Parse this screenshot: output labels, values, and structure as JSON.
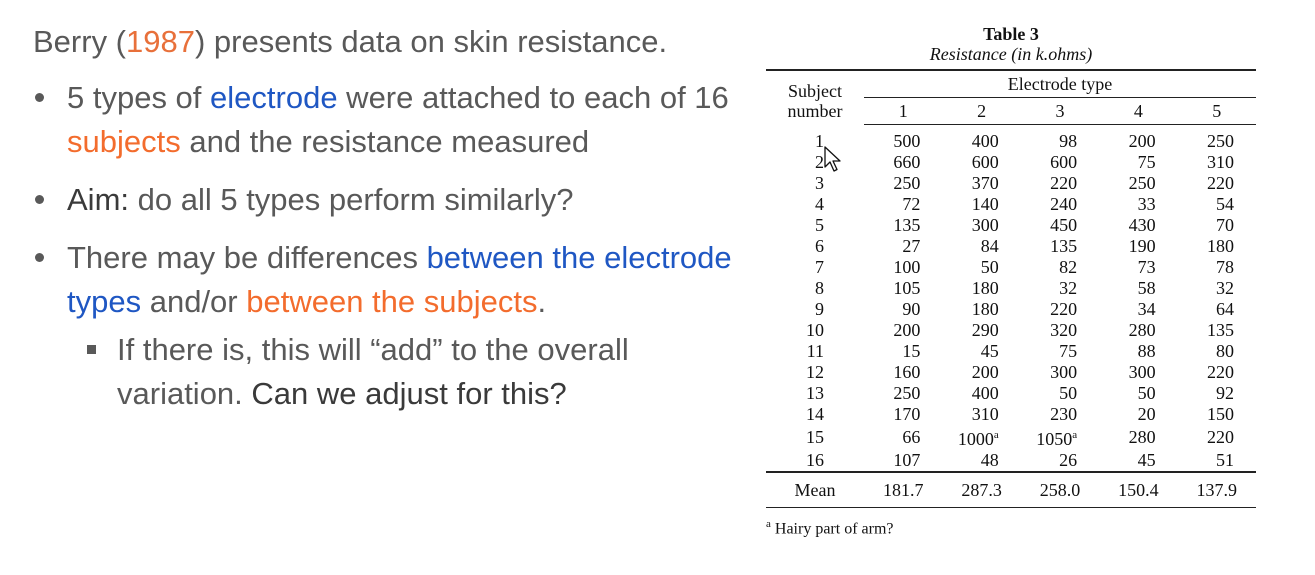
{
  "left": {
    "intro_prefix": "Berry (",
    "intro_year": "1987",
    "intro_suffix": ") presents data on skin resistance.",
    "bullet1_a": "5 types of ",
    "bullet1_b": "electrode",
    "bullet1_c": " were attached to each of 16 ",
    "bullet1_d": "subjects",
    "bullet1_e": " and the resistance measured",
    "bullet2_a": "Aim:",
    "bullet2_b": " do all 5 types perform similarly?",
    "bullet3_a": "There may be differences ",
    "bullet3_b": "between the electrode types",
    "bullet3_c": " and/or ",
    "bullet3_d": "between the subjects",
    "bullet3_e": ".",
    "sub_a": "If there is, this will “add” to the overall variation. ",
    "sub_b": "Can we adjust for this?"
  },
  "table": {
    "caption": "Table 3",
    "subtitle": "Resistance (in k.ohms)",
    "group_header": "Electrode type",
    "subject_header_1": "Subject",
    "subject_header_2": "number",
    "columns": [
      "1",
      "2",
      "3",
      "4",
      "5"
    ],
    "rows": [
      [
        "1",
        "500",
        "400",
        "98",
        "200",
        "250"
      ],
      [
        "2",
        "660",
        "600",
        "600",
        "75",
        "310"
      ],
      [
        "3",
        "250",
        "370",
        "220",
        "250",
        "220"
      ],
      [
        "4",
        "72",
        "140",
        "240",
        "33",
        "54"
      ],
      [
        "5",
        "135",
        "300",
        "450",
        "430",
        "70"
      ],
      [
        "6",
        "27",
        "84",
        "135",
        "190",
        "180"
      ],
      [
        "7",
        "100",
        "50",
        "82",
        "73",
        "78"
      ],
      [
        "8",
        "105",
        "180",
        "32",
        "58",
        "32"
      ],
      [
        "9",
        "90",
        "180",
        "220",
        "34",
        "64"
      ],
      [
        "10",
        "200",
        "290",
        "320",
        "280",
        "135"
      ],
      [
        "11",
        "15",
        "45",
        "75",
        "88",
        "80"
      ],
      [
        "12",
        "160",
        "200",
        "300",
        "300",
        "220"
      ],
      [
        "13",
        "250",
        "400",
        "50",
        "50",
        "92"
      ],
      [
        "14",
        "170",
        "310",
        "230",
        "20",
        "150"
      ],
      [
        "15",
        "66",
        "1000",
        "1050",
        "280",
        "220"
      ],
      [
        "16",
        "107",
        "48",
        "26",
        "45",
        "51"
      ]
    ],
    "footnote_marks": {
      "15": {
        "2": "a",
        "3": "a"
      }
    },
    "mean_label": "Mean",
    "means": [
      "181.7",
      "287.3",
      "258.0",
      "150.4",
      "137.9"
    ],
    "footnote_mark": "a",
    "footnote_text": " Hairy part of arm?"
  },
  "cursor": {
    "icon": "mouse-pointer-icon"
  }
}
